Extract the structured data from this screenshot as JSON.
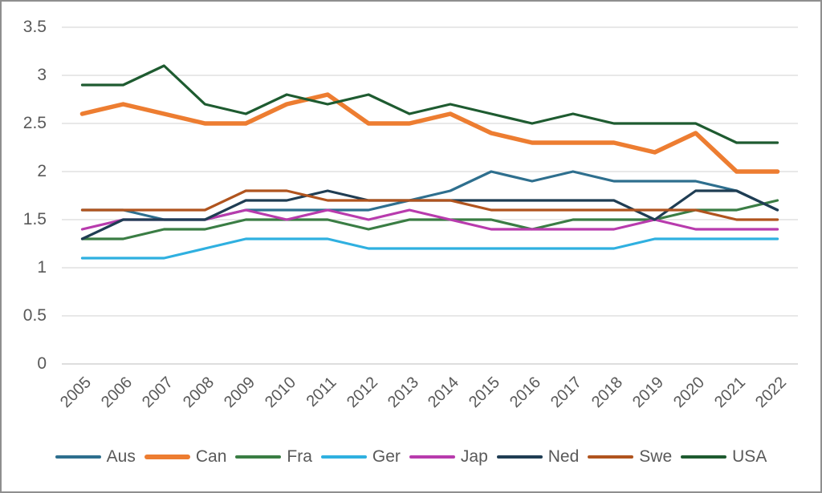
{
  "styles": {
    "background": "#FFFFFF",
    "border_color": "#8F8F8F",
    "gridline_color": "#D9D9D9",
    "axis_line_color": "#C9C9C9",
    "text_color": "#595959"
  },
  "chart_data": {
    "type": "line",
    "title": "",
    "xlabel": "",
    "ylabel": "",
    "grid": true,
    "legend_position": "bottom",
    "ylim": [
      0,
      3.5
    ],
    "ytick_values": [
      3.5,
      3,
      2.5,
      2,
      1.5,
      1,
      0.5,
      0
    ],
    "ytick_labels": [
      "3.5",
      "3",
      "2.5",
      "2",
      "1.5",
      "1",
      "0.5",
      "0"
    ],
    "categories": [
      "2005",
      "2006",
      "2007",
      "2008",
      "2009",
      "2010",
      "2011",
      "2012",
      "2013",
      "2014",
      "2015",
      "2016",
      "2017",
      "2018",
      "2019",
      "2020",
      "2021",
      "2022"
    ],
    "series": [
      {
        "name": "Aus",
        "color": "#2E6F8E",
        "line_width": 3.2,
        "values": [
          1.6,
          1.6,
          1.5,
          1.5,
          1.6,
          1.6,
          1.6,
          1.6,
          1.7,
          1.8,
          2.0,
          1.9,
          2.0,
          1.9,
          1.9,
          1.9,
          1.8,
          1.6
        ]
      },
      {
        "name": "Can",
        "color": "#ED7D31",
        "line_width": 5.5,
        "values": [
          2.6,
          2.7,
          2.6,
          2.5,
          2.5,
          2.7,
          2.8,
          2.5,
          2.5,
          2.6,
          2.4,
          2.3,
          2.3,
          2.3,
          2.2,
          2.4,
          2.0,
          2.0
        ]
      },
      {
        "name": "Fra",
        "color": "#3A7D44",
        "line_width": 3.2,
        "values": [
          1.3,
          1.3,
          1.4,
          1.4,
          1.5,
          1.5,
          1.5,
          1.4,
          1.5,
          1.5,
          1.5,
          1.4,
          1.5,
          1.5,
          1.5,
          1.6,
          1.6,
          1.7
        ]
      },
      {
        "name": "Ger",
        "color": "#2FB0E0",
        "line_width": 3.2,
        "values": [
          1.1,
          1.1,
          1.1,
          1.2,
          1.3,
          1.3,
          1.3,
          1.2,
          1.2,
          1.2,
          1.2,
          1.2,
          1.2,
          1.2,
          1.3,
          1.3,
          1.3,
          1.3
        ]
      },
      {
        "name": "Jap",
        "color": "#B83BAD",
        "line_width": 3.2,
        "values": [
          1.4,
          1.5,
          1.5,
          1.5,
          1.6,
          1.5,
          1.6,
          1.5,
          1.6,
          1.5,
          1.4,
          1.4,
          1.4,
          1.4,
          1.5,
          1.4,
          1.4,
          1.4
        ]
      },
      {
        "name": "Ned",
        "color": "#1F3D53",
        "line_width": 3.2,
        "values": [
          1.3,
          1.5,
          1.5,
          1.5,
          1.7,
          1.7,
          1.8,
          1.7,
          1.7,
          1.7,
          1.7,
          1.7,
          1.7,
          1.7,
          1.5,
          1.8,
          1.8,
          1.6
        ]
      },
      {
        "name": "Swe",
        "color": "#B0541E",
        "line_width": 3.2,
        "values": [
          1.6,
          1.6,
          1.6,
          1.6,
          1.8,
          1.8,
          1.7,
          1.7,
          1.7,
          1.7,
          1.6,
          1.6,
          1.6,
          1.6,
          1.6,
          1.6,
          1.5,
          1.5
        ]
      },
      {
        "name": "USA",
        "color": "#1E5B30",
        "line_width": 3.2,
        "values": [
          2.9,
          2.9,
          3.1,
          2.7,
          2.6,
          2.8,
          2.7,
          2.8,
          2.6,
          2.7,
          2.6,
          2.5,
          2.6,
          2.5,
          2.5,
          2.5,
          2.3,
          2.3
        ]
      }
    ]
  }
}
